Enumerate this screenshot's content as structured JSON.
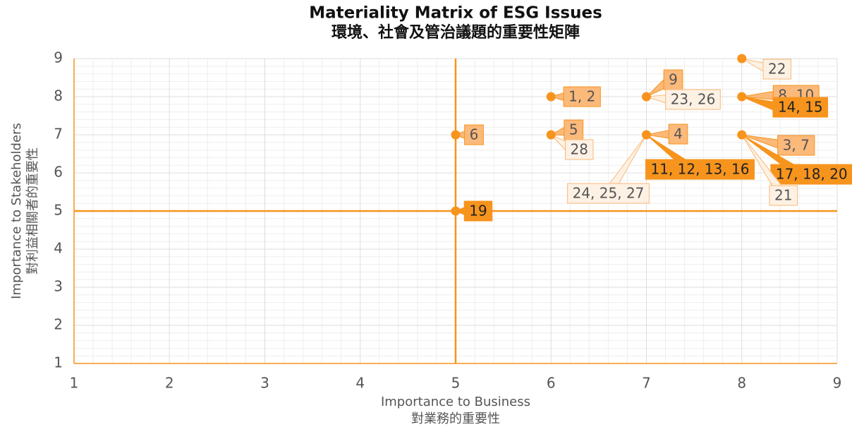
{
  "chart_data": {
    "type": "scatter",
    "title": "Materiality Matrix of ESG Issues",
    "subtitle": "環境、社會及管治議題的重要性矩陣",
    "x_label": [
      "Importance to Business",
      "對業務的重要性"
    ],
    "y_label": [
      "Importance to Stakeholders",
      "對利益相關者的重要性"
    ],
    "xlim": [
      1,
      9
    ],
    "ylim": [
      1,
      9
    ],
    "xticks": [
      1,
      2,
      3,
      4,
      5,
      6,
      7,
      8,
      9
    ],
    "yticks": [
      1,
      2,
      3,
      4,
      5,
      6,
      7,
      8,
      9
    ],
    "grid": true,
    "minor_grid_divisions": 5,
    "reference_lines": {
      "x": 5,
      "y": 5
    },
    "color": "#f7941d",
    "points": [
      {
        "x": 5,
        "y": 7,
        "labels": [
          {
            "text": "6",
            "fill": "#fbb97a",
            "border": "#f7941d"
          }
        ]
      },
      {
        "x": 5,
        "y": 5,
        "labels": [
          {
            "text": "19",
            "fill": "#f7941d",
            "border": "#f7941d"
          }
        ]
      },
      {
        "x": 6,
        "y": 8,
        "labels": [
          {
            "text": "1, 2",
            "fill": "#fbb97a",
            "border": "#f7941d"
          }
        ]
      },
      {
        "x": 6,
        "y": 7,
        "labels": [
          {
            "text": "5",
            "fill": "#fbb97a",
            "border": "#f7941d"
          },
          {
            "text": "28",
            "fill": "#fdf1e4",
            "border": "#f9b979"
          }
        ]
      },
      {
        "x": 7,
        "y": 8,
        "labels": [
          {
            "text": "9",
            "fill": "#fbb97a",
            "border": "#f7941d"
          },
          {
            "text": "23, 26",
            "fill": "#fdf1e4",
            "border": "#f9b979"
          }
        ]
      },
      {
        "x": 7,
        "y": 7,
        "labels": [
          {
            "text": "4",
            "fill": "#fbb97a",
            "border": "#f7941d"
          },
          {
            "text": "11, 12, 13, 16",
            "fill": "#f7941d",
            "border": "#f7941d"
          },
          {
            "text": "24, 25, 27",
            "fill": "#fdf1e4",
            "border": "#f9b979"
          }
        ]
      },
      {
        "x": 8,
        "y": 9,
        "labels": [
          {
            "text": "22",
            "fill": "#fdf1e4",
            "border": "#f9b979"
          }
        ]
      },
      {
        "x": 8,
        "y": 8,
        "labels": [
          {
            "text": "8, 10",
            "fill": "#fbb97a",
            "border": "#f7941d"
          },
          {
            "text": "14, 15",
            "fill": "#f7941d",
            "border": "#f7941d"
          }
        ]
      },
      {
        "x": 8,
        "y": 7,
        "labels": [
          {
            "text": "3, 7",
            "fill": "#fbb97a",
            "border": "#f7941d"
          },
          {
            "text": "17, 18, 20",
            "fill": "#f7941d",
            "border": "#f7941d"
          },
          {
            "text": "21",
            "fill": "#fdf1e4",
            "border": "#f9b979"
          }
        ]
      }
    ]
  }
}
